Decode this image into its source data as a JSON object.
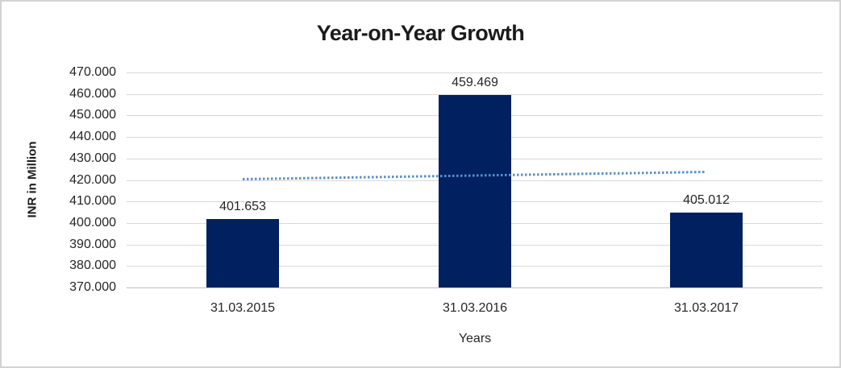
{
  "chart_data": {
    "type": "bar",
    "title": "Year-on-Year Growth",
    "xlabel": "Years",
    "ylabel": "INR in Million",
    "categories": [
      "31.03.2015",
      "31.03.2016",
      "31.03.2017"
    ],
    "series": [
      {
        "name": "INR in Million",
        "values": [
          401653,
          459469,
          405012
        ],
        "data_labels": [
          "401.653",
          "459.469",
          "405.012"
        ]
      }
    ],
    "ylim": [
      370000,
      470000
    ],
    "ytick_step": 10000,
    "ytick_labels": [
      "470.000",
      "460.000",
      "450.000",
      "440.000",
      "430.000",
      "420.000",
      "410.000",
      "400.000",
      "390.000",
      "380.000",
      "370.000"
    ],
    "grid": true,
    "legend": "none",
    "bars_baseline_value": 370000,
    "trendline": {
      "style": "dotted",
      "start_value": 420365,
      "end_value": 423724
    },
    "colors": {
      "bar": "#002060",
      "trendline": "#5b8fc9",
      "gridline": "#d9d9d9",
      "axis_line": "#bfbfbf",
      "text": "#262626",
      "title_text": "#1b1b1b",
      "frame_border": "#d3d3d3",
      "background": "#ffffff"
    }
  }
}
